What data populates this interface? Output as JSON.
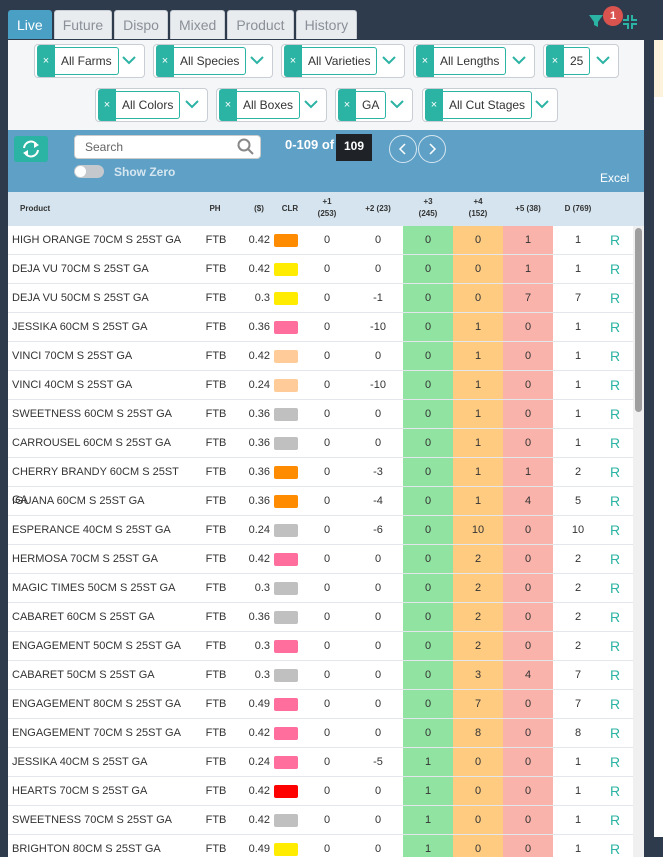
{
  "tabs": [
    {
      "label": "Live",
      "active": true
    },
    {
      "label": "Future"
    },
    {
      "label": "Dispo"
    },
    {
      "label": "Mixed"
    },
    {
      "label": "Product"
    },
    {
      "label": "History"
    }
  ],
  "header": {
    "filter_badge": "1"
  },
  "filters": {
    "row1": [
      {
        "label": "All Farms"
      },
      {
        "label": "All Species"
      },
      {
        "label": "All Varieties"
      },
      {
        "label": "All Lengths"
      },
      {
        "label": "25"
      }
    ],
    "row2": [
      {
        "label": "All Colors"
      },
      {
        "label": "All Boxes"
      },
      {
        "label": "GA"
      },
      {
        "label": "All Cut Stages"
      }
    ],
    "remove_glyph": "×"
  },
  "toolbar": {
    "search_placeholder": "Search",
    "show_zero_label": "Show Zero",
    "range_label": "0-109 of",
    "total": "109",
    "excel_label": "Excel"
  },
  "table": {
    "columns": {
      "product": "Product",
      "ph": "PH",
      "price": "($)",
      "clr": "CLR",
      "d1": "+1",
      "d1_sub": "(253)",
      "d2": "+2 (23)",
      "d3": "+3",
      "d3_sub": "(245)",
      "d4": "+4",
      "d4_sub": "(152)",
      "d5": "+5 (38)",
      "d": "D (769)"
    },
    "band_colors": {
      "d3": "#90e3a0",
      "d4": "#fecb80",
      "d5": "#f9b3aa"
    },
    "rows": [
      {
        "product": "HIGH ORANGE 70CM S 25ST GA",
        "ph": "FTB",
        "price": "0.42",
        "color": "#ff8c00",
        "d1": "0",
        "d2": "0",
        "d3": "0",
        "d4": "0",
        "d5": "1",
        "d": "1",
        "r": "R"
      },
      {
        "product": "DEJA VU 70CM S 25ST GA",
        "ph": "FTB",
        "price": "0.42",
        "color": "#ffec00",
        "d1": "0",
        "d2": "0",
        "d3": "0",
        "d4": "0",
        "d5": "1",
        "d": "1",
        "r": "R"
      },
      {
        "product": "DEJA VU 50CM S 25ST GA",
        "ph": "FTB",
        "price": "0.3",
        "color": "#ffec00",
        "d1": "0",
        "d2": "-1",
        "d3": "0",
        "d4": "0",
        "d5": "7",
        "d": "7",
        "r": "R"
      },
      {
        "product": "JESSIKA 60CM S 25ST GA",
        "ph": "FTB",
        "price": "0.36",
        "color": "#ff6e9c",
        "d1": "0",
        "d2": "-10",
        "d3": "0",
        "d4": "1",
        "d5": "0",
        "d": "1",
        "r": "R"
      },
      {
        "product": "VINCI 70CM S 25ST GA",
        "ph": "FTB",
        "price": "0.42",
        "color": "#ffcc99",
        "d1": "0",
        "d2": "0",
        "d3": "0",
        "d4": "1",
        "d5": "0",
        "d": "1",
        "r": "R"
      },
      {
        "product": "VINCI 40CM S 25ST GA",
        "ph": "FTB",
        "price": "0.24",
        "color": "#ffcc99",
        "d1": "0",
        "d2": "-10",
        "d3": "0",
        "d4": "1",
        "d5": "0",
        "d": "1",
        "r": "R"
      },
      {
        "product": "SWEETNESS 60CM S 25ST GA",
        "ph": "FTB",
        "price": "0.36",
        "color": "#c0c0c0",
        "d1": "0",
        "d2": "0",
        "d3": "0",
        "d4": "1",
        "d5": "0",
        "d": "1",
        "r": "R"
      },
      {
        "product": "CARROUSEL 60CM S 25ST GA",
        "ph": "FTB",
        "price": "0.36",
        "color": "#c0c0c0",
        "d1": "0",
        "d2": "0",
        "d3": "0",
        "d4": "1",
        "d5": "0",
        "d": "1",
        "r": "R"
      },
      {
        "product": "CHERRY BRANDY 60CM S 25ST GA",
        "ph": "FTB",
        "price": "0.36",
        "color": "#ff8c00",
        "d1": "0",
        "d2": "-3",
        "d3": "0",
        "d4": "1",
        "d5": "1",
        "d": "2",
        "r": "R"
      },
      {
        "product": "IGUANA 60CM S 25ST GA",
        "ph": "FTB",
        "price": "0.36",
        "color": "#ff8c00",
        "d1": "0",
        "d2": "-4",
        "d3": "0",
        "d4": "1",
        "d5": "4",
        "d": "5",
        "r": "R"
      },
      {
        "product": "ESPERANCE 40CM S 25ST GA",
        "ph": "FTB",
        "price": "0.24",
        "color": "#c0c0c0",
        "d1": "0",
        "d2": "-6",
        "d3": "0",
        "d4": "10",
        "d5": "0",
        "d": "10",
        "r": "R"
      },
      {
        "product": "HERMOSA 70CM S 25ST GA",
        "ph": "FTB",
        "price": "0.42",
        "color": "#ff6e9c",
        "d1": "0",
        "d2": "0",
        "d3": "0",
        "d4": "2",
        "d5": "0",
        "d": "2",
        "r": "R"
      },
      {
        "product": "MAGIC TIMES 50CM S 25ST GA",
        "ph": "FTB",
        "price": "0.3",
        "color": "#c0c0c0",
        "d1": "0",
        "d2": "0",
        "d3": "0",
        "d4": "2",
        "d5": "0",
        "d": "2",
        "r": "R"
      },
      {
        "product": "CABARET 60CM S 25ST GA",
        "ph": "FTB",
        "price": "0.36",
        "color": "#c0c0c0",
        "d1": "0",
        "d2": "0",
        "d3": "0",
        "d4": "2",
        "d5": "0",
        "d": "2",
        "r": "R"
      },
      {
        "product": "ENGAGEMENT 50CM S 25ST GA",
        "ph": "FTB",
        "price": "0.3",
        "color": "#ff6e9c",
        "d1": "0",
        "d2": "0",
        "d3": "0",
        "d4": "2",
        "d5": "0",
        "d": "2",
        "r": "R"
      },
      {
        "product": "CABARET 50CM S 25ST GA",
        "ph": "FTB",
        "price": "0.3",
        "color": "#c0c0c0",
        "d1": "0",
        "d2": "0",
        "d3": "0",
        "d4": "3",
        "d5": "4",
        "d": "7",
        "r": "R"
      },
      {
        "product": "ENGAGEMENT 80CM S 25ST GA",
        "ph": "FTB",
        "price": "0.49",
        "color": "#ff6e9c",
        "d1": "0",
        "d2": "0",
        "d3": "0",
        "d4": "7",
        "d5": "0",
        "d": "7",
        "r": "R"
      },
      {
        "product": "ENGAGEMENT 70CM S 25ST GA",
        "ph": "FTB",
        "price": "0.42",
        "color": "#ff6e9c",
        "d1": "0",
        "d2": "0",
        "d3": "0",
        "d4": "8",
        "d5": "0",
        "d": "8",
        "r": "R"
      },
      {
        "product": "JESSIKA 40CM S 25ST GA",
        "ph": "FTB",
        "price": "0.24",
        "color": "#ff6e9c",
        "d1": "0",
        "d2": "-5",
        "d3": "1",
        "d4": "0",
        "d5": "0",
        "d": "1",
        "r": "R"
      },
      {
        "product": "HEARTS 70CM S 25ST GA",
        "ph": "FTB",
        "price": "0.42",
        "color": "#ff0000",
        "d1": "0",
        "d2": "0",
        "d3": "1",
        "d4": "0",
        "d5": "0",
        "d": "1",
        "r": "R"
      },
      {
        "product": "SWEETNESS 70CM S 25ST GA",
        "ph": "FTB",
        "price": "0.42",
        "color": "#c0c0c0",
        "d1": "0",
        "d2": "0",
        "d3": "1",
        "d4": "0",
        "d5": "0",
        "d": "1",
        "r": "R"
      },
      {
        "product": "BRIGHTON 80CM S 25ST GA",
        "ph": "FTB",
        "price": "0.49",
        "color": "#ffec00",
        "d1": "0",
        "d2": "0",
        "d3": "1",
        "d4": "0",
        "d5": "0",
        "d": "1",
        "r": "R"
      }
    ]
  }
}
